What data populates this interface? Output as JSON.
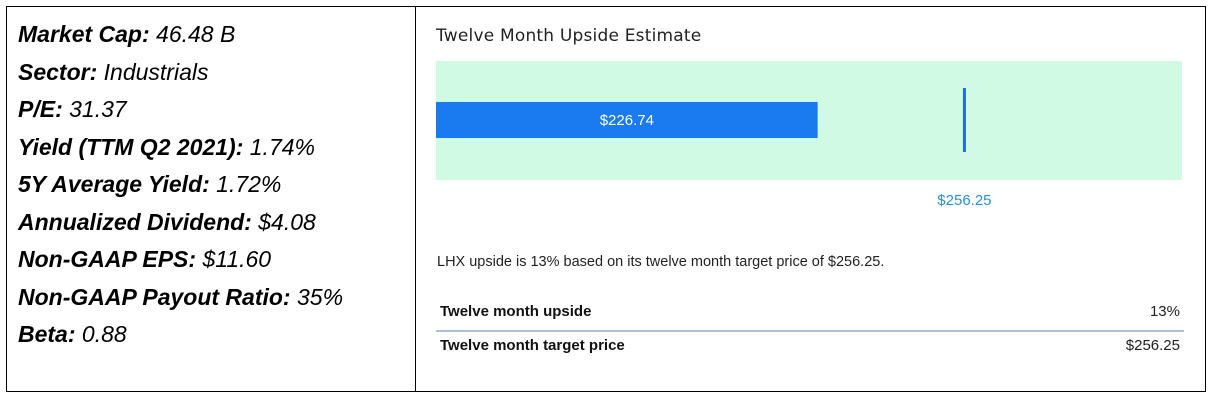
{
  "stats": [
    {
      "label": "Market Cap:",
      "value": "46.48 B"
    },
    {
      "label": "Sector:",
      "value": "Industrials"
    },
    {
      "label": "P/E:",
      "value": "31.37"
    },
    {
      "label": "Yield (TTM Q2 2021):",
      "value": "1.74%"
    },
    {
      "label": "5Y Average Yield:",
      "value": "1.72%"
    },
    {
      "label": "Annualized Dividend:",
      "value": "$4.08"
    },
    {
      "label": "Non-GAAP EPS:",
      "value": "$11.60"
    },
    {
      "label": "Non-GAAP Payout Ratio:",
      "value": "35%"
    },
    {
      "label": "Beta:",
      "value": "0.88"
    }
  ],
  "card": {
    "title": "Twelve Month Upside Estimate",
    "summary": "LHX upside is 13% based on its twelve month target price of $256.25."
  },
  "chart_data": {
    "type": "bar",
    "title": "Twelve Month Upside Estimate",
    "current_price": 226.74,
    "current_price_label": "$226.74",
    "target_price": 256.25,
    "target_price_label": "$256.25",
    "xlim": [
      150,
      300
    ],
    "colors": {
      "band": "#d1fae5",
      "bar": "#1a7af0",
      "marker": "#1a6fd8",
      "target_label": "#2a8fdc"
    }
  },
  "table": [
    {
      "label": "Twelve month upside",
      "value": "13%"
    },
    {
      "label": "Twelve month target price",
      "value": "$256.25"
    }
  ]
}
